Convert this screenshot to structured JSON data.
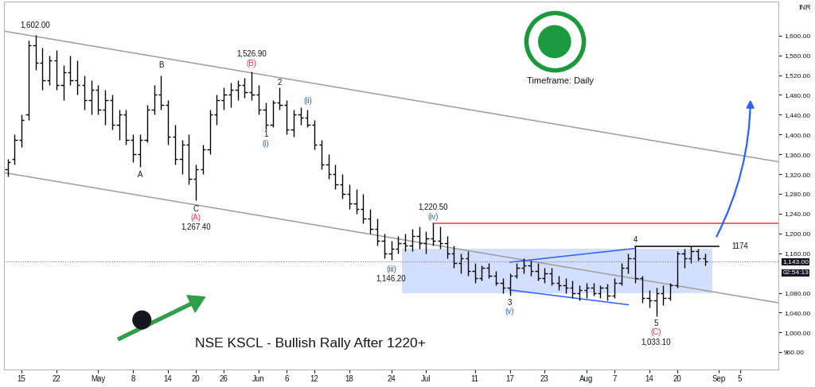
{
  "chart_data": {
    "type": "ohlc",
    "title": "NSE KSCL - Bullish Rally After 1220+",
    "subtitle": "Timeframe: Daily",
    "y_label": "INR",
    "color": "#000000",
    "grid": false,
    "categories": [
      null,
      null,
      "15",
      null,
      null,
      null,
      null,
      "22",
      null,
      null,
      null,
      null,
      null,
      "May",
      null,
      null,
      null,
      null,
      "8",
      null,
      null,
      null,
      null,
      "14",
      null,
      null,
      null,
      "20",
      null,
      null,
      null,
      "26",
      null,
      null,
      null,
      null,
      "Jun",
      null,
      null,
      null,
      "6",
      null,
      null,
      null,
      "12",
      null,
      null,
      null,
      null,
      "18",
      null,
      null,
      null,
      null,
      null,
      "24",
      null,
      null,
      null,
      null,
      "Jul",
      null,
      null,
      null,
      null,
      null,
      null,
      "11",
      null,
      null,
      null,
      null,
      "17",
      null,
      null,
      null,
      null,
      "23",
      null,
      null,
      null,
      null,
      null,
      "Aug",
      null,
      null,
      null,
      "7",
      null,
      null,
      null,
      null,
      "14",
      null,
      null,
      null,
      "20",
      null,
      null,
      null,
      null,
      null,
      "Sep",
      null,
      null,
      "5",
      null,
      null,
      null,
      null,
      null
    ],
    "open": [
      1330,
      1350,
      1390,
      1440,
      1580,
      1545,
      1510,
      1550,
      1500,
      1525,
      1510,
      1500,
      1470,
      1490,
      1450,
      1470,
      1420,
      1440,
      1390,
      1360,
      1390,
      1450,
      1480,
      1460,
      1395,
      1350,
      1380,
      1310,
      1330,
      1370,
      1440,
      1470,
      1480,
      1490,
      1500,
      1485,
      1480,
      1450,
      1420,
      1465,
      1460,
      1410,
      1440,
      1435,
      1420,
      1380,
      1340,
      1320,
      1300,
      1280,
      1260,
      1250,
      1230,
      1210,
      1185,
      1160,
      1170,
      1180,
      1175,
      1195,
      1180,
      1190,
      1185,
      1180,
      1160,
      1140,
      1150,
      1125,
      1110,
      1130,
      1115,
      1100,
      1090,
      1115,
      1130,
      1135,
      1125,
      1110,
      1120,
      1100,
      1095,
      1090,
      1080,
      1085,
      1090,
      1080,
      1090,
      1075,
      1100,
      1130,
      1150,
      1110,
      1070,
      1065,
      1080,
      1070,
      1095,
      1160,
      1150,
      1165,
      1150,
      null,
      null,
      null,
      null,
      null,
      null,
      null,
      null,
      null,
      null
    ],
    "high": [
      1350,
      1400,
      1440,
      1590,
      1602,
      1575,
      1560,
      1570,
      1540,
      1560,
      1550,
      1520,
      1510,
      1500,
      1490,
      1480,
      1450,
      1450,
      1400,
      1400,
      1460,
      1500,
      1520,
      1470,
      1420,
      1390,
      1400,
      1340,
      1380,
      1450,
      1480,
      1495,
      1505,
      1510,
      1515,
      1526.9,
      1500,
      1465,
      1470,
      1495,
      1470,
      1450,
      1455,
      1450,
      1430,
      1390,
      1360,
      1340,
      1320,
      1300,
      1290,
      1280,
      1250,
      1230,
      1200,
      1185,
      1195,
      1200,
      1210,
      1215,
      1205,
      1220.5,
      1215,
      1195,
      1175,
      1160,
      1165,
      1140,
      1135,
      1140,
      1125,
      1110,
      1120,
      1140,
      1150,
      1145,
      1140,
      1130,
      1130,
      1115,
      1110,
      1105,
      1095,
      1100,
      1100,
      1095,
      1098,
      1110,
      1140,
      1160,
      1174,
      1115,
      1085,
      1090,
      1095,
      1100,
      1165,
      1170,
      1174,
      1170,
      1160,
      null,
      null,
      null,
      null,
      null,
      null,
      null,
      null,
      null,
      null
    ],
    "low": [
      1315,
      1340,
      1375,
      1430,
      1530,
      1490,
      1500,
      1490,
      1470,
      1500,
      1480,
      1450,
      1440,
      1440,
      1420,
      1410,
      1390,
      1380,
      1345,
      1335,
      1385,
      1440,
      1450,
      1380,
      1340,
      1320,
      1300,
      1267.4,
      1320,
      1360,
      1420,
      1450,
      1455,
      1470,
      1475,
      1470,
      1440,
      1410,
      1415,
      1450,
      1400,
      1395,
      1420,
      1415,
      1370,
      1330,
      1310,
      1290,
      1270,
      1250,
      1240,
      1220,
      1200,
      1175,
      1150,
      1146.2,
      1160,
      1165,
      1165,
      1170,
      1160,
      1175,
      1170,
      1150,
      1130,
      1120,
      1115,
      1100,
      1105,
      1110,
      1095,
      1080,
      1075,
      1110,
      1120,
      1115,
      1105,
      1100,
      1095,
      1085,
      1080,
      1070,
      1065,
      1070,
      1075,
      1070,
      1065,
      1070,
      1095,
      1120,
      1100,
      1060,
      1050,
      1033.1,
      1055,
      1065,
      1090,
      1130,
      1140,
      1145,
      1135,
      null,
      null,
      null,
      null,
      null,
      null,
      null,
      null,
      null,
      null
    ],
    "close": [
      1345,
      1390,
      1430,
      1580,
      1545,
      1510,
      1550,
      1500,
      1525,
      1510,
      1500,
      1470,
      1490,
      1450,
      1470,
      1420,
      1440,
      1390,
      1360,
      1390,
      1450,
      1480,
      1460,
      1395,
      1350,
      1380,
      1310,
      1330,
      1370,
      1440,
      1470,
      1480,
      1490,
      1500,
      1485,
      1480,
      1450,
      1420,
      1465,
      1460,
      1410,
      1440,
      1435,
      1420,
      1380,
      1340,
      1320,
      1300,
      1280,
      1260,
      1250,
      1230,
      1210,
      1185,
      1160,
      1170,
      1180,
      1175,
      1195,
      1180,
      1190,
      1185,
      1180,
      1160,
      1140,
      1150,
      1125,
      1110,
      1130,
      1115,
      1100,
      1090,
      1115,
      1130,
      1135,
      1125,
      1110,
      1120,
      1100,
      1095,
      1090,
      1080,
      1085,
      1090,
      1080,
      1090,
      1075,
      1100,
      1130,
      1150,
      1110,
      1070,
      1065,
      1080,
      1070,
      1095,
      1160,
      1150,
      1165,
      1150,
      1143,
      null,
      null,
      null,
      null,
      null,
      null,
      null,
      null,
      null,
      null
    ],
    "ylim": [
      925,
      1668
    ],
    "yticks": [
      {
        "value": 960,
        "label": "960.00"
      },
      {
        "value": 1000,
        "label": "1,000.00"
      },
      {
        "value": 1040,
        "label": "1,040.00"
      },
      {
        "value": 1080,
        "label": "1,080.00"
      },
      {
        "value": 1160,
        "label": "1,160.00"
      },
      {
        "value": 1200,
        "label": "1,200.00"
      },
      {
        "value": 1240,
        "label": "1,240.00"
      },
      {
        "value": 1280,
        "label": "1,280.00"
      },
      {
        "value": 1320,
        "label": "1,320.00"
      },
      {
        "value": 1360,
        "label": "1,360.00"
      },
      {
        "value": 1400,
        "label": "1,400.00"
      },
      {
        "value": 1440,
        "label": "1,440.00"
      },
      {
        "value": 1480,
        "label": "1,480.00"
      },
      {
        "value": 1520,
        "label": "1,520.00"
      },
      {
        "value": 1560,
        "label": "1,560.00"
      },
      {
        "value": 1600,
        "label": "1,600.00"
      }
    ],
    "last_price": {
      "value": 1143,
      "label": "1,143.00",
      "countdown": "02:54:13"
    },
    "lines": [
      {
        "x": [
          -0.5,
          110.5
        ],
        "y": [
          1609,
          1345
        ],
        "color": "#9e9e9e"
      },
      {
        "x": [
          -0.5,
          110.5
        ],
        "y": [
          1323,
          1060
        ],
        "color": "#9e9e9e"
      },
      {
        "x": [
          61,
          110.5
        ],
        "y": [
          1220.5,
          1220.5
        ],
        "color": "#f23645"
      },
      {
        "x": [
          90,
          102
        ],
        "y": [
          1174,
          1174
        ],
        "color": "#000000"
      },
      {
        "x": [
          72,
          90
        ],
        "y": [
          1142,
          1170
        ],
        "color": "#2962ff"
      },
      {
        "x": [
          72,
          89
        ],
        "y": [
          1086,
          1056
        ],
        "color": "#2962ff"
      }
    ],
    "zones": [
      {
        "x": [
          56.5,
          101
        ],
        "y": [
          1080,
          1170
        ],
        "color": "#2962ff"
      }
    ],
    "arrows": [
      {
        "x": [
          101.5,
          106.5
        ],
        "y": [
          1190,
          1475
        ],
        "color": "#2962ff"
      }
    ],
    "annotations": [
      {
        "text": "1,602.00",
        "x": 4,
        "y": 1622,
        "color": "#131722"
      },
      {
        "text": "A",
        "x": 19,
        "y": 1318,
        "color": "#131722"
      },
      {
        "text": "B",
        "x": 22,
        "y": 1540,
        "color": "#131722"
      },
      {
        "text": "C",
        "x": 27,
        "y": 1250,
        "color": "#131722"
      },
      {
        "text": "(A)",
        "x": 27,
        "y": 1232,
        "color": "#f23645"
      },
      {
        "text": "1,267.40",
        "x": 27,
        "y": 1213,
        "color": "#131722"
      },
      {
        "text": "1,526.90",
        "x": 35,
        "y": 1563,
        "color": "#131722"
      },
      {
        "text": "(B)",
        "x": 35,
        "y": 1544,
        "color": "#f23645"
      },
      {
        "text": "1",
        "x": 37,
        "y": 1400,
        "color": "#131722"
      },
      {
        "text": "(i)",
        "x": 37,
        "y": 1381,
        "color": "#2962ff"
      },
      {
        "text": "2",
        "x": 39,
        "y": 1505,
        "color": "#131722"
      },
      {
        "text": "(ii)",
        "x": 43,
        "y": 1468,
        "color": "#2962ff"
      },
      {
        "text": "(iii)",
        "x": 55,
        "y": 1128,
        "color": "#2962ff"
      },
      {
        "text": "1,146.20",
        "x": 55,
        "y": 1109,
        "color": "#131722"
      },
      {
        "text": "1,220.50",
        "x": 61,
        "y": 1253,
        "color": "#131722"
      },
      {
        "text": "(iv)",
        "x": 61,
        "y": 1234,
        "color": "#2962ff"
      },
      {
        "text": "3",
        "x": 72,
        "y": 1060,
        "color": "#131722"
      },
      {
        "text": "(v)",
        "x": 72,
        "y": 1042,
        "color": "#2962ff"
      },
      {
        "text": "4",
        "x": 90,
        "y": 1187,
        "color": "#131722"
      },
      {
        "text": "5",
        "x": 93,
        "y": 1018,
        "color": "#131722"
      },
      {
        "text": "(C)",
        "x": 93,
        "y": 1000,
        "color": "#f23645"
      },
      {
        "text": "1,033.10",
        "x": 93,
        "y": 981,
        "color": "#131722"
      },
      {
        "text": "1174",
        "x": 105,
        "y": 1174,
        "color": "#131722"
      }
    ]
  }
}
